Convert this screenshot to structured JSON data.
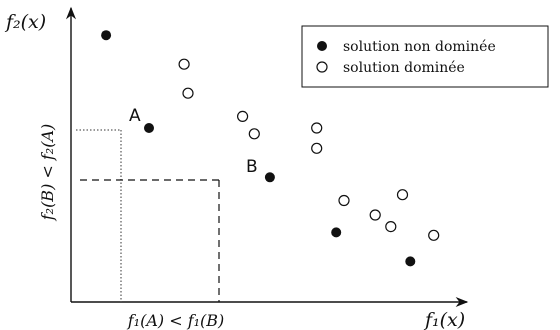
{
  "axes": {
    "y_label": "f₂(x)",
    "x_label": "f₁(x)",
    "y_comparison": "f₂(B) < f₂(A)",
    "x_comparison": "f₁(A) < f₁(B)"
  },
  "legend": {
    "non_dominated": "solution non dominée",
    "dominated": "solution dominée"
  },
  "point_labels": {
    "a": "A",
    "b": "B"
  },
  "chart_data": {
    "type": "scatter",
    "series": [
      {
        "name": "solution non dominée",
        "marker": "filled",
        "points": [
          [
            0.09,
            0.92
          ],
          [
            0.2,
            0.6
          ],
          [
            0.51,
            0.43
          ],
          [
            0.68,
            0.24
          ],
          [
            0.87,
            0.14
          ]
        ]
      },
      {
        "name": "solution dominée",
        "marker": "hollow",
        "points": [
          [
            0.29,
            0.82
          ],
          [
            0.3,
            0.72
          ],
          [
            0.44,
            0.64
          ],
          [
            0.47,
            0.58
          ],
          [
            0.63,
            0.6
          ],
          [
            0.63,
            0.53
          ],
          [
            0.7,
            0.35
          ],
          [
            0.78,
            0.3
          ],
          [
            0.82,
            0.26
          ],
          [
            0.85,
            0.37
          ],
          [
            0.93,
            0.23
          ]
        ]
      }
    ],
    "xlim": [
      0,
      1
    ],
    "ylim": [
      0,
      1
    ]
  }
}
